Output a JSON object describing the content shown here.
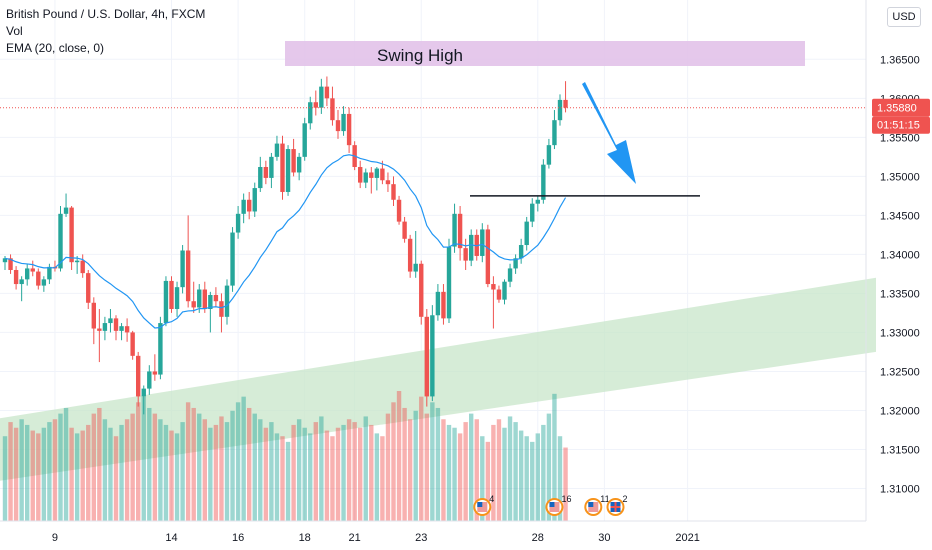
{
  "legend": {
    "title": "British Pound / U.S. Dollar, 4h, FXCM",
    "vol": "Vol",
    "ema": "EMA (20, close, 0)"
  },
  "currency": "USD",
  "annotation": {
    "swing_high": "Swing High"
  },
  "colors": {
    "up": "#26a69a",
    "down": "#ef5350",
    "ema": "#2196f3",
    "swing_zone": "#e1bee7",
    "channel": "#c8e6c9",
    "arrow": "#2196f3",
    "price_tag": "#ef5350"
  },
  "chart_data": {
    "type": "candlestick",
    "y_range": [
      1.3075,
      1.3685
    ],
    "y_ticks": [
      "1.36500",
      "1.36000",
      "1.35500",
      "1.35000",
      "1.34500",
      "1.34000",
      "1.33500",
      "1.33000",
      "1.32500",
      "1.32000",
      "1.31500",
      "1.31000"
    ],
    "y_tick_values": [
      1.365,
      1.36,
      1.355,
      1.35,
      1.345,
      1.34,
      1.335,
      1.33,
      1.325,
      1.32,
      1.315,
      1.31
    ],
    "x_ticks": [
      "9",
      "14",
      "16",
      "18",
      "21",
      "23",
      "28",
      "30",
      "2021"
    ],
    "x_tick_bars": [
      9,
      30,
      42,
      54,
      63,
      75,
      96,
      108,
      123
    ],
    "last_price": "1.35880",
    "countdown": "01:51:15",
    "swing_high_level": 1.3615,
    "support_level": 1.3475,
    "events": [
      {
        "flag": "us-uk",
        "count": "4",
        "bar": 86
      },
      {
        "flag": "us-uk",
        "count": "16",
        "bar": 99
      },
      {
        "flag": "us",
        "count": "11",
        "bar": 106
      },
      {
        "flag": "uk",
        "count": "2",
        "bar": 110
      }
    ],
    "candles": [
      [
        1.339,
        1.3398,
        1.338,
        1.3395
      ],
      [
        1.3395,
        1.34,
        1.3375,
        1.338
      ],
      [
        1.338,
        1.3385,
        1.3355,
        1.3362
      ],
      [
        1.3362,
        1.3372,
        1.334,
        1.3368
      ],
      [
        1.3368,
        1.3388,
        1.336,
        1.3382
      ],
      [
        1.3382,
        1.3392,
        1.3372,
        1.3378
      ],
      [
        1.3378,
        1.3382,
        1.3355,
        1.336
      ],
      [
        1.336,
        1.3372,
        1.3352,
        1.3368
      ],
      [
        1.3368,
        1.3388,
        1.3362,
        1.3384
      ],
      [
        1.3384,
        1.3392,
        1.3378,
        1.3382
      ],
      [
        1.3382,
        1.3462,
        1.3378,
        1.3452
      ],
      [
        1.3452,
        1.3478,
        1.3448,
        1.346
      ],
      [
        1.346,
        1.3462,
        1.338,
        1.339
      ],
      [
        1.339,
        1.3398,
        1.3375,
        1.3392
      ],
      [
        1.3392,
        1.34,
        1.337,
        1.3376
      ],
      [
        1.3376,
        1.338,
        1.333,
        1.3338
      ],
      [
        1.3338,
        1.3345,
        1.3285,
        1.3305
      ],
      [
        1.3305,
        1.333,
        1.3262,
        1.3302
      ],
      [
        1.3302,
        1.332,
        1.329,
        1.3312
      ],
      [
        1.3312,
        1.333,
        1.33,
        1.3318
      ],
      [
        1.3318,
        1.3322,
        1.329,
        1.3302
      ],
      [
        1.3302,
        1.3312,
        1.329,
        1.3308
      ],
      [
        1.3308,
        1.3318,
        1.3288,
        1.33
      ],
      [
        1.33,
        1.3302,
        1.3265,
        1.327
      ],
      [
        1.327,
        1.3275,
        1.3205,
        1.3218
      ],
      [
        1.3218,
        1.3232,
        1.3195,
        1.3228
      ],
      [
        1.3228,
        1.3258,
        1.322,
        1.325
      ],
      [
        1.325,
        1.3272,
        1.3238,
        1.3246
      ],
      [
        1.3246,
        1.332,
        1.324,
        1.3312
      ],
      [
        1.3312,
        1.3372,
        1.3308,
        1.3366
      ],
      [
        1.3366,
        1.3372,
        1.3325,
        1.333
      ],
      [
        1.333,
        1.3365,
        1.332,
        1.3358
      ],
      [
        1.3358,
        1.3412,
        1.335,
        1.3405
      ],
      [
        1.3405,
        1.345,
        1.3332,
        1.334
      ],
      [
        1.334,
        1.3365,
        1.3325,
        1.3332
      ],
      [
        1.3332,
        1.3362,
        1.3325,
        1.3355
      ],
      [
        1.3355,
        1.3365,
        1.3325,
        1.333
      ],
      [
        1.333,
        1.3352,
        1.33,
        1.3348
      ],
      [
        1.3348,
        1.3358,
        1.3332,
        1.334
      ],
      [
        1.334,
        1.335,
        1.33,
        1.332
      ],
      [
        1.332,
        1.3368,
        1.331,
        1.336
      ],
      [
        1.336,
        1.3435,
        1.3352,
        1.3428
      ],
      [
        1.3428,
        1.3462,
        1.342,
        1.3452
      ],
      [
        1.3452,
        1.3478,
        1.344,
        1.347
      ],
      [
        1.347,
        1.348,
        1.3445,
        1.3455
      ],
      [
        1.3455,
        1.3492,
        1.3448,
        1.3485
      ],
      [
        1.3485,
        1.3525,
        1.348,
        1.3512
      ],
      [
        1.3512,
        1.352,
        1.349,
        1.3498
      ],
      [
        1.3498,
        1.353,
        1.3485,
        1.3525
      ],
      [
        1.3525,
        1.3552,
        1.352,
        1.3542
      ],
      [
        1.3542,
        1.3552,
        1.347,
        1.348
      ],
      [
        1.348,
        1.354,
        1.3475,
        1.3535
      ],
      [
        1.3535,
        1.3548,
        1.35,
        1.3505
      ],
      [
        1.3505,
        1.353,
        1.3495,
        1.3525
      ],
      [
        1.3525,
        1.3575,
        1.352,
        1.3568
      ],
      [
        1.3568,
        1.3602,
        1.356,
        1.3595
      ],
      [
        1.3595,
        1.361,
        1.3578,
        1.3588
      ],
      [
        1.3588,
        1.3625,
        1.358,
        1.3615
      ],
      [
        1.3615,
        1.3628,
        1.359,
        1.36
      ],
      [
        1.36,
        1.3615,
        1.3565,
        1.3572
      ],
      [
        1.3572,
        1.3585,
        1.3548,
        1.3558
      ],
      [
        1.3558,
        1.359,
        1.3552,
        1.358
      ],
      [
        1.358,
        1.3588,
        1.353,
        1.354
      ],
      [
        1.354,
        1.3545,
        1.3508,
        1.3512
      ],
      [
        1.3512,
        1.352,
        1.3485,
        1.3492
      ],
      [
        1.3492,
        1.351,
        1.3485,
        1.3505
      ],
      [
        1.3505,
        1.3512,
        1.3478,
        1.3498
      ],
      [
        1.3498,
        1.3512,
        1.3482,
        1.351
      ],
      [
        1.351,
        1.352,
        1.349,
        1.3495
      ],
      [
        1.3495,
        1.3505,
        1.348,
        1.349
      ],
      [
        1.349,
        1.35,
        1.3462,
        1.347
      ],
      [
        1.347,
        1.3475,
        1.3438,
        1.3442
      ],
      [
        1.3442,
        1.3448,
        1.3415,
        1.342
      ],
      [
        1.342,
        1.3425,
        1.337,
        1.3378
      ],
      [
        1.3378,
        1.343,
        1.337,
        1.3388
      ],
      [
        1.3388,
        1.3392,
        1.331,
        1.332
      ],
      [
        1.332,
        1.333,
        1.3205,
        1.3218
      ],
      [
        1.3218,
        1.3335,
        1.3212,
        1.3322
      ],
      [
        1.3322,
        1.3362,
        1.3315,
        1.3352
      ],
      [
        1.3352,
        1.3362,
        1.331,
        1.3318
      ],
      [
        1.3318,
        1.342,
        1.3312,
        1.341
      ],
      [
        1.341,
        1.3465,
        1.3402,
        1.3452
      ],
      [
        1.3452,
        1.3462,
        1.3392,
        1.3408
      ],
      [
        1.3408,
        1.342,
        1.338,
        1.3392
      ],
      [
        1.3392,
        1.3432,
        1.3385,
        1.3425
      ],
      [
        1.3425,
        1.3432,
        1.3392,
        1.3398
      ],
      [
        1.3398,
        1.344,
        1.339,
        1.3432
      ],
      [
        1.3432,
        1.3438,
        1.3358,
        1.3362
      ],
      [
        1.3362,
        1.3372,
        1.3305,
        1.3355
      ],
      [
        1.3355,
        1.336,
        1.3338,
        1.3342
      ],
      [
        1.3342,
        1.3368,
        1.3336,
        1.3365
      ],
      [
        1.3365,
        1.3388,
        1.3358,
        1.3382
      ],
      [
        1.3382,
        1.34,
        1.3375,
        1.3395
      ],
      [
        1.3395,
        1.342,
        1.3388,
        1.3412
      ],
      [
        1.3412,
        1.3448,
        1.3405,
        1.3442
      ],
      [
        1.3442,
        1.3472,
        1.3435,
        1.3465
      ],
      [
        1.3465,
        1.3475,
        1.3455,
        1.347
      ],
      [
        1.347,
        1.3522,
        1.3465,
        1.3515
      ],
      [
        1.3515,
        1.3548,
        1.351,
        1.354
      ],
      [
        1.354,
        1.3585,
        1.3535,
        1.3572
      ],
      [
        1.3572,
        1.3605,
        1.3565,
        1.3598
      ],
      [
        1.3598,
        1.3622,
        1.3582,
        1.3588
      ]
    ],
    "volumes": [
      30,
      35,
      33,
      36,
      34,
      32,
      31,
      33,
      35,
      36,
      38,
      40,
      33,
      31,
      32,
      34,
      38,
      40,
      36,
      33,
      30,
      34,
      36,
      38,
      42,
      44,
      40,
      38,
      36,
      34,
      32,
      31,
      35,
      42,
      40,
      38,
      36,
      33,
      34,
      37,
      35,
      39,
      42,
      44,
      40,
      38,
      36,
      33,
      35,
      31,
      30,
      28,
      34,
      36,
      33,
      31,
      35,
      37,
      32,
      30,
      33,
      34,
      36,
      35,
      33,
      37,
      34,
      31,
      30,
      38,
      42,
      46,
      40,
      36,
      39,
      44,
      38,
      42,
      40,
      36,
      34,
      33,
      31,
      35,
      38,
      36,
      30,
      28,
      34,
      36,
      33,
      37,
      35,
      32,
      30,
      28,
      31,
      34,
      38,
      45,
      30,
      26
    ]
  }
}
